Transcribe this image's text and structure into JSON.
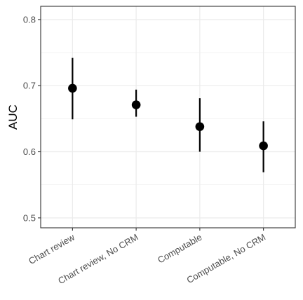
{
  "chart_data": {
    "type": "scatter",
    "subtype": "point-with-error-bars",
    "ylabel": "AUC",
    "xlabel": "",
    "categories": [
      "Chart review",
      "Chart review, No CRM",
      "Computable",
      "Computable, No CRM"
    ],
    "points": [
      {
        "category": "Chart review",
        "estimate": 0.696,
        "lower": 0.649,
        "upper": 0.742
      },
      {
        "category": "Chart review, No CRM",
        "estimate": 0.671,
        "lower": 0.653,
        "upper": 0.694
      },
      {
        "category": "Computable",
        "estimate": 0.638,
        "lower": 0.6,
        "upper": 0.681
      },
      {
        "category": "Computable, No CRM",
        "estimate": 0.609,
        "lower": 0.569,
        "upper": 0.646
      }
    ],
    "ylim": [
      0.485,
      0.82
    ],
    "yticks": [
      0.5,
      0.6,
      0.7,
      0.8
    ],
    "ytick_labels": [
      "0.5",
      "0.6",
      "0.7",
      "0.8"
    ],
    "grid": true,
    "legend": "none",
    "colors": {
      "point": "#000000",
      "grid": "#ebebeb",
      "panel_border": "#333333",
      "tick_label": "#4d4d4d"
    }
  }
}
